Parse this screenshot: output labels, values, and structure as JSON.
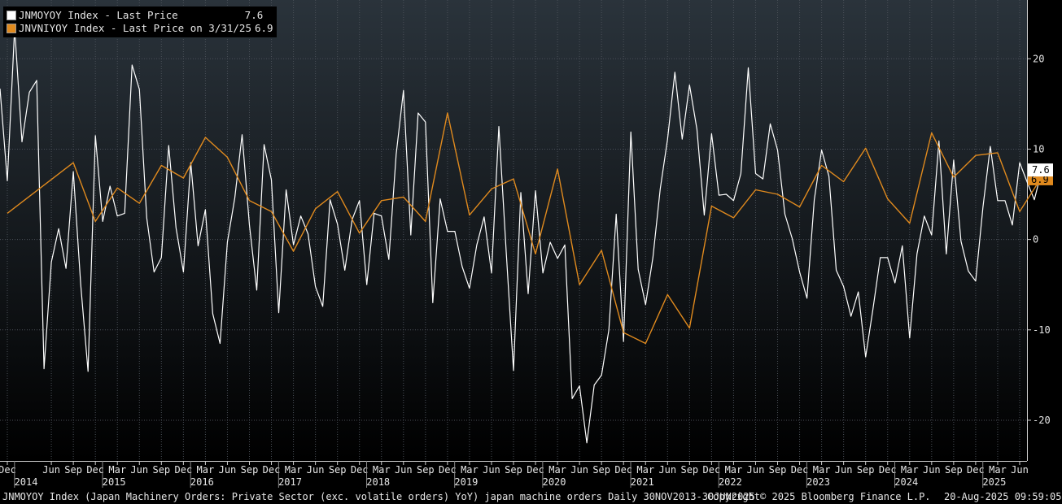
{
  "legend": {
    "series1_label": "JNMOYOY Index - Last Price",
    "series1_value": "7.6",
    "series2_label": "JNVNIYOY Index - Last Price on 3/31/25",
    "series2_value": "6.9"
  },
  "last_badges": {
    "series1": "7.6",
    "series2": "6.9"
  },
  "footer": {
    "description": "JNMOYOY Index (Japan Machinery Orders: Private Sector (exc. volatile orders) YoY) japan machine orders  Daily 30NOV2013-30JUN2025",
    "copyright": "Copyright© 2025 Bloomberg Finance L.P.",
    "timestamp": "20-Aug-2025 09:59:05"
  },
  "colors": {
    "series1": "#ffffff",
    "series2": "#e08a1e",
    "background_top": "#2a333b",
    "background_bottom": "#000000"
  },
  "chart_data": {
    "type": "line",
    "x_range": [
      "2013-11",
      "2025-07"
    ],
    "ylim": [
      -24.5,
      26.5
    ],
    "y_ticks": [
      -20,
      -10,
      0,
      10,
      20
    ],
    "x_month_labels": [
      {
        "label": "Dec",
        "date": "2013-12"
      },
      {
        "label": "Jun",
        "date": "2014-06"
      },
      {
        "label": "Sep",
        "date": "2014-09"
      },
      {
        "label": "Dec",
        "date": "2014-12"
      },
      {
        "label": "Mar",
        "date": "2015-03"
      },
      {
        "label": "Jun",
        "date": "2015-06"
      },
      {
        "label": "Sep",
        "date": "2015-09"
      },
      {
        "label": "Dec",
        "date": "2015-12"
      },
      {
        "label": "Mar",
        "date": "2016-03"
      },
      {
        "label": "Jun",
        "date": "2016-06"
      },
      {
        "label": "Sep",
        "date": "2016-09"
      },
      {
        "label": "Dec",
        "date": "2016-12"
      },
      {
        "label": "Mar",
        "date": "2017-03"
      },
      {
        "label": "Jun",
        "date": "2017-06"
      },
      {
        "label": "Sep",
        "date": "2017-09"
      },
      {
        "label": "Dec",
        "date": "2017-12"
      },
      {
        "label": "Mar",
        "date": "2018-03"
      },
      {
        "label": "Jun",
        "date": "2018-06"
      },
      {
        "label": "Sep",
        "date": "2018-09"
      },
      {
        "label": "Dec",
        "date": "2018-12"
      },
      {
        "label": "Mar",
        "date": "2019-03"
      },
      {
        "label": "Jun",
        "date": "2019-06"
      },
      {
        "label": "Sep",
        "date": "2019-09"
      },
      {
        "label": "Dec",
        "date": "2019-12"
      },
      {
        "label": "Mar",
        "date": "2020-03"
      },
      {
        "label": "Jun",
        "date": "2020-06"
      },
      {
        "label": "Sep",
        "date": "2020-09"
      },
      {
        "label": "Dec",
        "date": "2020-12"
      },
      {
        "label": "Mar",
        "date": "2021-03"
      },
      {
        "label": "Jun",
        "date": "2021-06"
      },
      {
        "label": "Sep",
        "date": "2021-09"
      },
      {
        "label": "Dec",
        "date": "2021-12"
      },
      {
        "label": "Mar",
        "date": "2022-03"
      },
      {
        "label": "Jun",
        "date": "2022-06"
      },
      {
        "label": "Sep",
        "date": "2022-09"
      },
      {
        "label": "Dec",
        "date": "2022-12"
      },
      {
        "label": "Mar",
        "date": "2023-03"
      },
      {
        "label": "Jun",
        "date": "2023-06"
      },
      {
        "label": "Sep",
        "date": "2023-09"
      },
      {
        "label": "Dec",
        "date": "2023-12"
      },
      {
        "label": "Mar",
        "date": "2024-03"
      },
      {
        "label": "Jun",
        "date": "2024-06"
      },
      {
        "label": "Sep",
        "date": "2024-09"
      },
      {
        "label": "Dec",
        "date": "2024-12"
      },
      {
        "label": "Mar",
        "date": "2025-03"
      },
      {
        "label": "Jun",
        "date": "2025-06"
      }
    ],
    "x_year_labels": [
      {
        "label": "2014",
        "date": "2014-01"
      },
      {
        "label": "2015",
        "date": "2015-01"
      },
      {
        "label": "2016",
        "date": "2016-01"
      },
      {
        "label": "2017",
        "date": "2017-01"
      },
      {
        "label": "2018",
        "date": "2018-01"
      },
      {
        "label": "2019",
        "date": "2019-01"
      },
      {
        "label": "2020",
        "date": "2020-01"
      },
      {
        "label": "2021",
        "date": "2021-01"
      },
      {
        "label": "2022",
        "date": "2022-01"
      },
      {
        "label": "2023",
        "date": "2023-01"
      },
      {
        "label": "2024",
        "date": "2024-01"
      },
      {
        "label": "2025",
        "date": "2025-01"
      }
    ],
    "series": [
      {
        "name": "JNMOYOY Index - Last Price",
        "start": "2013-11",
        "values": [
          16.7,
          6.5,
          23.4,
          10.8,
          16.3,
          17.6,
          -14.3,
          -2.5,
          1.2,
          -3.2,
          7.5,
          -5.0,
          -14.6,
          11.5,
          2.0,
          5.9,
          2.6,
          2.9,
          19.3,
          16.6,
          2.4,
          -3.6,
          -2.0,
          10.4,
          1.3,
          -3.6,
          8.5,
          -0.7,
          3.3,
          -8.2,
          -11.5,
          -0.3,
          4.6,
          11.6,
          1.6,
          -5.6,
          10.5,
          6.6,
          -8.1,
          5.5,
          -0.6,
          2.6,
          0.6,
          -5.2,
          -7.4,
          4.4,
          1.7,
          -3.4,
          2.2,
          4.3,
          -5.0,
          2.9,
          2.6,
          -2.2,
          9.4,
          16.5,
          0.5,
          14.0,
          13.0,
          -7.0,
          4.5,
          0.9,
          0.9,
          -3.0,
          -5.4,
          -0.6,
          2.5,
          -3.7,
          12.5,
          -1.3,
          -14.5,
          5.2,
          -6.0,
          5.4,
          -3.7,
          -0.3,
          -2.1,
          -0.6,
          -17.6,
          -16.2,
          -22.5,
          -16.1,
          -15.0,
          -10.0,
          2.8,
          -11.3,
          11.9,
          -3.3,
          -7.2,
          -2.0,
          5.6,
          11.1,
          18.5,
          11.1,
          17.1,
          12.2,
          2.7,
          11.7,
          4.9,
          5.0,
          4.3,
          7.3,
          19.0,
          7.3,
          6.7,
          12.8,
          9.9,
          2.8,
          0.1,
          -3.6,
          -6.5,
          4.4,
          9.9,
          7.0,
          -3.4,
          -5.2,
          -8.5,
          -5.8,
          -13.0,
          -7.7,
          -2.0,
          -2.0,
          -4.8,
          -0.7,
          -10.9,
          -1.6,
          2.6,
          0.5,
          10.9,
          -1.6,
          8.8,
          -0.2,
          -3.5,
          -4.6,
          3.6,
          10.3,
          4.3,
          4.3,
          1.6,
          8.5,
          6.4,
          4.4,
          7.6
        ]
      },
      {
        "name": "JNVNIYOY Index - Last Price on 3/31/25",
        "points": [
          {
            "date": "2013-12",
            "value": 2.9
          },
          {
            "date": "2014-09",
            "value": 8.5
          },
          {
            "date": "2014-12",
            "value": 2.0
          },
          {
            "date": "2015-03",
            "value": 5.7
          },
          {
            "date": "2015-06",
            "value": 4.0
          },
          {
            "date": "2015-09",
            "value": 8.2
          },
          {
            "date": "2015-12",
            "value": 6.8
          },
          {
            "date": "2016-03",
            "value": 11.3
          },
          {
            "date": "2016-06",
            "value": 9.1
          },
          {
            "date": "2016-09",
            "value": 4.3
          },
          {
            "date": "2016-12",
            "value": 3.1
          },
          {
            "date": "2017-03",
            "value": -1.3
          },
          {
            "date": "2017-06",
            "value": 3.4
          },
          {
            "date": "2017-09",
            "value": 5.3
          },
          {
            "date": "2017-12",
            "value": 0.7
          },
          {
            "date": "2018-03",
            "value": 4.3
          },
          {
            "date": "2018-06",
            "value": 4.7
          },
          {
            "date": "2018-09",
            "value": 2.0
          },
          {
            "date": "2018-12",
            "value": 14.0
          },
          {
            "date": "2019-03",
            "value": 2.7
          },
          {
            "date": "2019-06",
            "value": 5.6
          },
          {
            "date": "2019-09",
            "value": 6.7
          },
          {
            "date": "2019-12",
            "value": -1.6
          },
          {
            "date": "2020-03",
            "value": 7.8
          },
          {
            "date": "2020-06",
            "value": -5.0
          },
          {
            "date": "2020-09",
            "value": -1.2
          },
          {
            "date": "2020-12",
            "value": -10.3
          },
          {
            "date": "2021-03",
            "value": -11.5
          },
          {
            "date": "2021-06",
            "value": -6.1
          },
          {
            "date": "2021-09",
            "value": -9.8
          },
          {
            "date": "2021-12",
            "value": 3.7
          },
          {
            "date": "2022-03",
            "value": 2.4
          },
          {
            "date": "2022-06",
            "value": 5.5
          },
          {
            "date": "2022-09",
            "value": 5.0
          },
          {
            "date": "2022-12",
            "value": 3.6
          },
          {
            "date": "2023-03",
            "value": 8.2
          },
          {
            "date": "2023-06",
            "value": 6.4
          },
          {
            "date": "2023-09",
            "value": 10.1
          },
          {
            "date": "2023-12",
            "value": 4.5
          },
          {
            "date": "2024-03",
            "value": 1.8
          },
          {
            "date": "2024-06",
            "value": 11.8
          },
          {
            "date": "2024-09",
            "value": 6.9
          },
          {
            "date": "2024-12",
            "value": 9.3
          },
          {
            "date": "2025-03",
            "value": 9.6
          },
          {
            "date": "2025-06",
            "value": 3.1
          },
          {
            "date": "2025-09",
            "value": 6.9
          }
        ]
      }
    ],
    "grid": true,
    "legend_position": "top-left",
    "axis_position": "right"
  }
}
